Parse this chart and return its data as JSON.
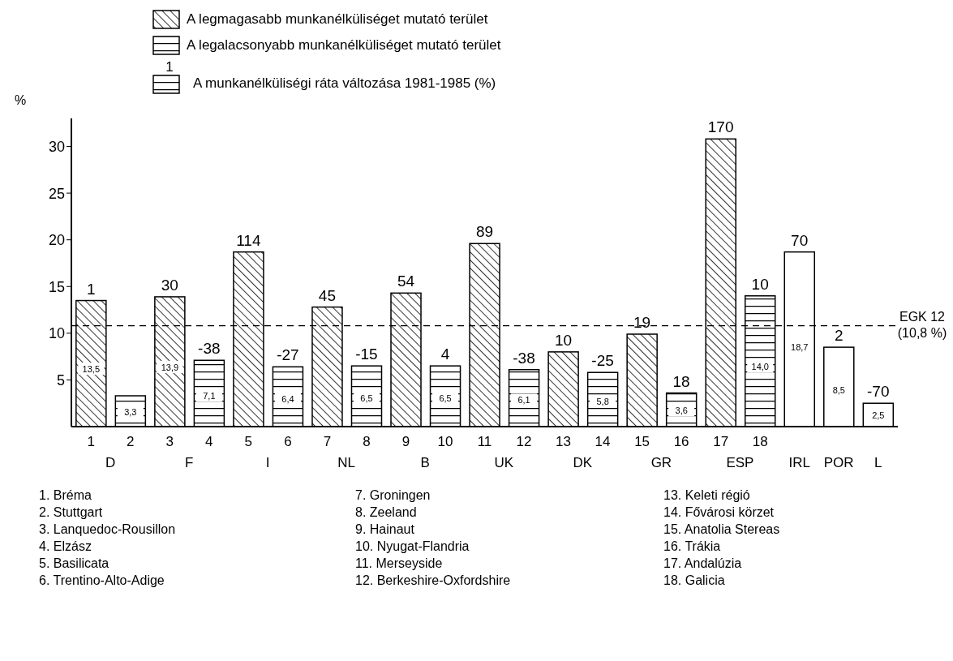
{
  "chart_data": {
    "type": "bar",
    "ylabel": "%",
    "stacked": true,
    "legend": "top",
    "grid": false,
    "categories": [
      "1",
      "2",
      "3",
      "4",
      "5",
      "6",
      "7",
      "8",
      "9",
      "10",
      "11",
      "12",
      "13",
      "14",
      "15",
      "16",
      "17",
      "18",
      "IRL",
      "POR",
      "L"
    ],
    "series": [
      {
        "name": "A legmagasabb munkanélküliséget mutató terület",
        "color": "#000000",
        "values": [
          13.5,
          null,
          13.9,
          null,
          18.7,
          null,
          12.8,
          null,
          14.3,
          null,
          19.6,
          null,
          8.0,
          null,
          9.9,
          null,
          30.8,
          null,
          null,
          null,
          null
        ],
        "value_labels": [
          "13,5",
          null,
          "13,9",
          null,
          null,
          null,
          null,
          null,
          null,
          null,
          null,
          null,
          null,
          null,
          null,
          null,
          null,
          null,
          null,
          null,
          null
        ]
      },
      {
        "name": "A legalacsonyabb munkanélküliséget mutató terület",
        "color": "#000000",
        "values": [
          null,
          3.3,
          null,
          7.1,
          null,
          6.4,
          null,
          6.5,
          null,
          6.5,
          null,
          6.1,
          null,
          5.8,
          null,
          3.6,
          null,
          14.0,
          null,
          null,
          null
        ],
        "value_labels": [
          null,
          "3,3",
          null,
          "7,1",
          null,
          "6,4",
          null,
          "6,5",
          null,
          "6,5",
          null,
          "6,1",
          null,
          "5,8",
          null,
          "3,6",
          null,
          "14,0",
          null,
          null,
          null
        ]
      },
      {
        "color": "#000000",
        "values": [
          null,
          null,
          null,
          null,
          null,
          null,
          null,
          null,
          null,
          null,
          null,
          null,
          null,
          null,
          null,
          null,
          null,
          null,
          18.7,
          8.5,
          2.5
        ],
        "value_labels": [
          null,
          null,
          null,
          null,
          null,
          null,
          null,
          null,
          null,
          null,
          null,
          null,
          null,
          null,
          null,
          null,
          null,
          null,
          "18,7",
          "8,5",
          "2,5"
        ]
      }
    ],
    "ylim": [
      0,
      33
    ],
    "yticks": [
      5,
      10,
      15,
      20,
      25,
      30
    ],
    "ref_lines": [
      {
        "axis": "y",
        "value": 10.8,
        "label": "EGK 12 (10,8 %)",
        "line_style": "dashed",
        "color": "#000000"
      }
    ],
    "annotations": [
      "1",
      "A munkanélküliségi ráta változása 1981-1985 (%)",
      "D",
      "F",
      "I",
      "NL",
      "B",
      "UK",
      "DK",
      "GR",
      "ESP",
      "1. Bréma",
      "2. Stuttgart",
      "3. Lanquedoc-Rousillon",
      "4. Elzász",
      "5. Basilicata",
      "6. Trentino-Alto-Adige",
      "7. Groningen",
      "8. Zeeland",
      "9. Hainaut",
      "10. Nyugat-Flandria",
      "11. Merseyside",
      "12. Berkeshire-Oxfordshire",
      "13. Keleti régió",
      "14. Fővárosi körzet",
      "15. Anatolia Stereas",
      "16. Trákia",
      "17. Andalúzia",
      "18. Galicia",
      {
        "text": "1",
        "x": "1",
        "y": 13.5
      },
      {
        "text": "30",
        "x": "3",
        "y": 13.9
      },
      {
        "text": "-38",
        "x": "4",
        "y": 7.1
      },
      {
        "text": "114",
        "x": "5",
        "y": 18.7
      },
      {
        "text": "-27",
        "x": "6",
        "y": 6.4
      },
      {
        "text": "45",
        "x": "7",
        "y": 12.8
      },
      {
        "text": "-15",
        "x": "8",
        "y": 6.5
      },
      {
        "text": "54",
        "x": "9",
        "y": 14.3
      },
      {
        "text": "4",
        "x": "10",
        "y": 6.5
      },
      {
        "text": "89",
        "x": "11",
        "y": 19.6
      },
      {
        "text": "-38",
        "x": "12",
        "y": 6.1
      },
      {
        "text": "10",
        "x": "13",
        "y": 8.0
      },
      {
        "text": "-25",
        "x": "14",
        "y": 5.8
      },
      {
        "text": "19",
        "x": "15",
        "y": 9.9
      },
      {
        "text": "18",
        "x": "16",
        "y": 3.6
      },
      {
        "text": "170",
        "x": "17",
        "y": 30.8
      },
      {
        "text": "10",
        "x": "18",
        "y": 14.0
      },
      {
        "text": "70",
        "x": "IRL",
        "y": 18.7
      },
      {
        "text": "2",
        "x": "POR",
        "y": 8.5
      },
      {
        "text": "-70",
        "x": "L",
        "y": 2.5
      }
    ]
  }
}
